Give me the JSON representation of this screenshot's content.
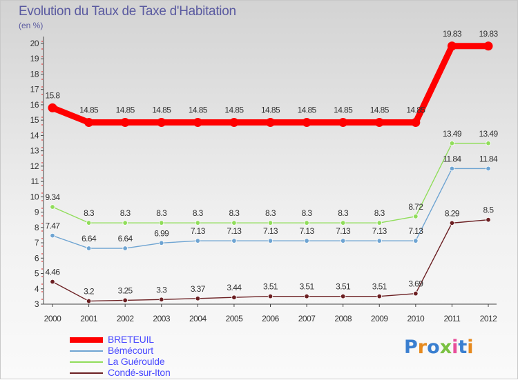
{
  "title": "Evolution du Taux de Taxe d'Habitation",
  "unit_label": "(en %)",
  "brand": {
    "text": "Proxiti",
    "letter_colors": [
      "#3a7fd0",
      "#e68a1f",
      "#3a7fd0",
      "#7ac142",
      "#e84e9a",
      "#3a7fd0",
      "#e68a1f"
    ]
  },
  "chart_data": {
    "type": "line",
    "title": "Evolution du Taux de Taxe d'Habitation",
    "ylabel": "(en %)",
    "xlabel": "",
    "x": [
      "2000",
      "2001",
      "2002",
      "2003",
      "2004",
      "2005",
      "2006",
      "2007",
      "2008",
      "2009",
      "2010",
      "2011",
      "2012"
    ],
    "ylim": [
      3,
      20
    ],
    "yticks": [
      3,
      4,
      5,
      6,
      7,
      8,
      9,
      10,
      11,
      12,
      13,
      14,
      15,
      16,
      17,
      18,
      19,
      20
    ],
    "grid": false,
    "legend_position": "bottom-left",
    "series": [
      {
        "name": "BRETEUIL",
        "color": "#ff0000",
        "values": [
          15.8,
          14.85,
          14.85,
          14.85,
          14.85,
          14.85,
          14.85,
          14.85,
          14.85,
          14.85,
          14.85,
          19.83,
          19.83
        ]
      },
      {
        "name": "Bémécourt",
        "color": "#6ea4d2",
        "values": [
          7.47,
          6.64,
          6.64,
          6.99,
          7.13,
          7.13,
          7.13,
          7.13,
          7.13,
          7.13,
          7.13,
          11.84,
          11.84
        ]
      },
      {
        "name": "La Guéroulde",
        "color": "#90dd5a",
        "values": [
          9.34,
          8.3,
          8.3,
          8.3,
          8.3,
          8.3,
          8.3,
          8.3,
          8.3,
          8.3,
          8.72,
          13.49,
          13.49
        ]
      },
      {
        "name": "Condé-sur-Iton",
        "color": "#6b1f22",
        "values": [
          4.46,
          3.2,
          3.25,
          3.3,
          3.37,
          3.44,
          3.51,
          3.51,
          3.51,
          3.51,
          3.69,
          8.29,
          8.5
        ]
      }
    ]
  }
}
